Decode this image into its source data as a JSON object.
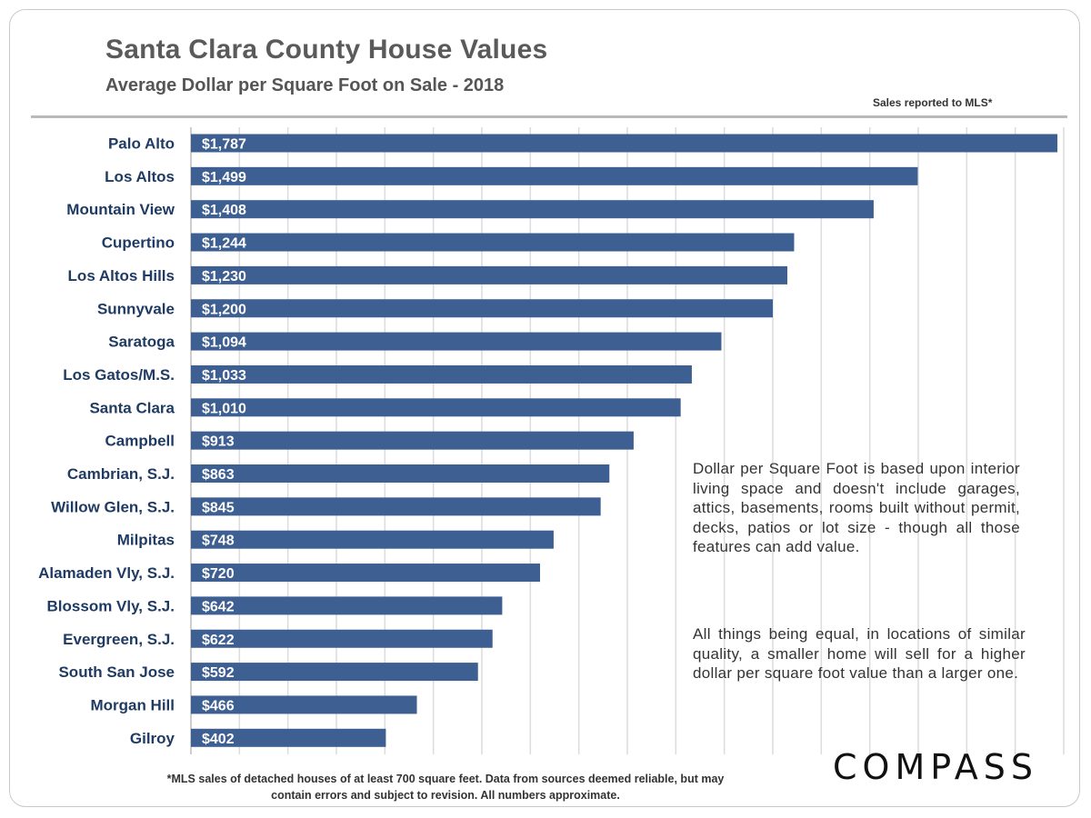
{
  "title": "Santa Clara County House Values",
  "subtitle": "Average Dollar per Square Foot on Sale - 2018",
  "source_note": "Sales reported  to MLS*",
  "note_1": "Dollar per Square Foot is based upon interior living space and doesn't include garages, attics, basements, rooms built without permit, decks, patios or lot size - though all those features can add value.",
  "note_2": "All things being equal, in locations of similar quality, a smaller home will sell for a higher dollar per square foot value than a larger one.",
  "footer_line_1": "*MLS sales of detached houses of at least 700 square feet. Data from sources deemed reliable, but may",
  "footer_line_2": "contain errors and subject to revision. All numbers approximate.",
  "brand": "COMPASS",
  "colors": {
    "bar": "#3d5f92",
    "grid": "#dcdcdc",
    "label": "#1f3b63"
  },
  "chart_data": {
    "type": "bar",
    "orientation": "horizontal",
    "title": "Santa Clara County House Values",
    "subtitle": "Average Dollar per Square Foot on Sale - 2018",
    "categories": [
      "Palo Alto",
      "Los Altos",
      "Mountain View",
      "Cupertino",
      "Los Altos Hills",
      "Sunnyvale",
      "Saratoga",
      "Los Gatos/M.S.",
      "Santa Clara",
      "Campbell",
      "Cambrian, S.J.",
      "Willow Glen, S.J.",
      "Milpitas",
      "Alamaden Vly, S.J.",
      "Blossom Vly, S.J.",
      "Evergreen, S.J.",
      "South San Jose",
      "Morgan Hill",
      "Gilroy"
    ],
    "values": [
      1787,
      1499,
      1408,
      1244,
      1230,
      1200,
      1094,
      1033,
      1010,
      913,
      863,
      845,
      748,
      720,
      642,
      622,
      592,
      466,
      402
    ],
    "data_labels": [
      "$1,787",
      "$1,499",
      "$1,408",
      "$1,244",
      "$1,230",
      "$1,200",
      "$1,094",
      "$1,033",
      "$1,010",
      "$913",
      "$863",
      "$845",
      "$748",
      "$720",
      "$642",
      "$622",
      "$592",
      "$466",
      "$402"
    ],
    "xlim": [
      0,
      1800
    ],
    "grid": true,
    "x_tick_labels_shown": false
  }
}
